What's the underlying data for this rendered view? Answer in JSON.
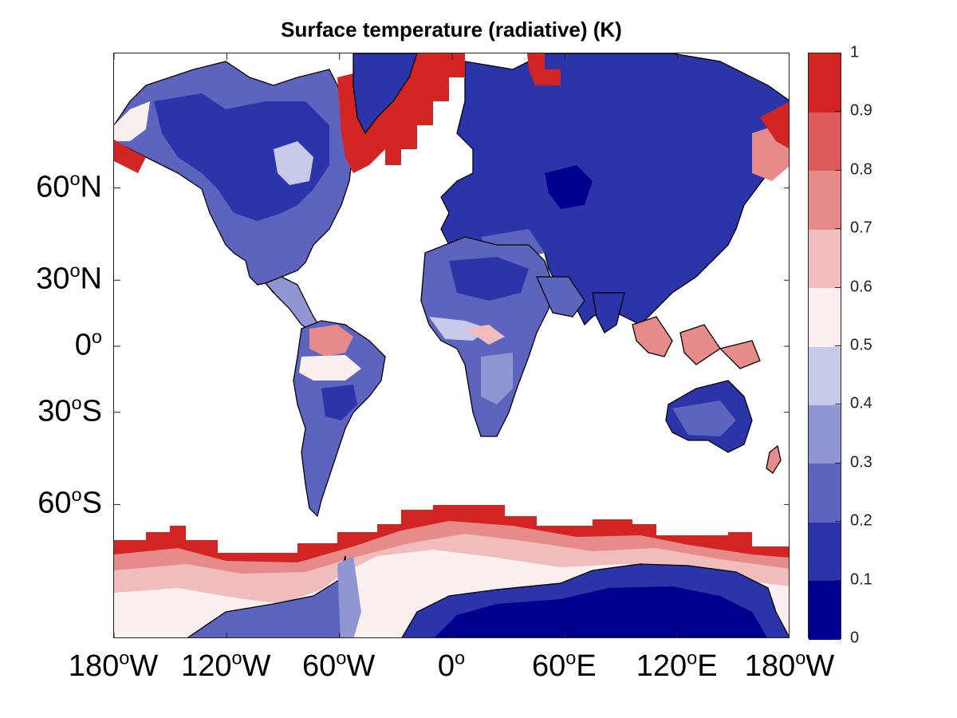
{
  "title": "Surface temperature (radiative) (K)",
  "axes": {
    "lat_ticks": [
      {
        "deg": "60",
        "hemi": "N",
        "lat": 60
      },
      {
        "deg": "30",
        "hemi": "N",
        "lat": 30
      },
      {
        "deg": "0",
        "hemi": "",
        "lat": 0
      },
      {
        "deg": "30",
        "hemi": "S",
        "lat": -30
      },
      {
        "deg": "60",
        "hemi": "S",
        "lat": -60
      }
    ],
    "lon_ticks": [
      {
        "deg": "180",
        "hemi": "W",
        "lon": -180
      },
      {
        "deg": "120",
        "hemi": "W",
        "lon": -120
      },
      {
        "deg": "60",
        "hemi": "W",
        "lon": -60
      },
      {
        "deg": "0",
        "hemi": "",
        "lon": 0
      },
      {
        "deg": "60",
        "hemi": "E",
        "lon": 60
      },
      {
        "deg": "120",
        "hemi": "E",
        "lon": 120
      },
      {
        "deg": "180",
        "hemi": "W",
        "lon": 180
      }
    ],
    "degree_symbol": "o"
  },
  "colorbar": {
    "labels": [
      "0",
      "0.1",
      "0.2",
      "0.3",
      "0.4",
      "0.5",
      "0.6",
      "0.7",
      "0.8",
      "0.9",
      "1"
    ],
    "colors": [
      "#00008f",
      "#2b34a8",
      "#5c64bd",
      "#8f96d2",
      "#c6c9e8",
      "#fbefef",
      "#f0bcbc",
      "#e68a8a",
      "#dc5a5a",
      "#d32424"
    ],
    "min": 0,
    "max": 1
  },
  "map": {
    "projection": "Mercator",
    "lon_range": [
      -180,
      180
    ],
    "lat_range": [
      -80,
      80
    ],
    "ocean_color": "#ffffff",
    "coastline_color": "#000000"
  }
}
